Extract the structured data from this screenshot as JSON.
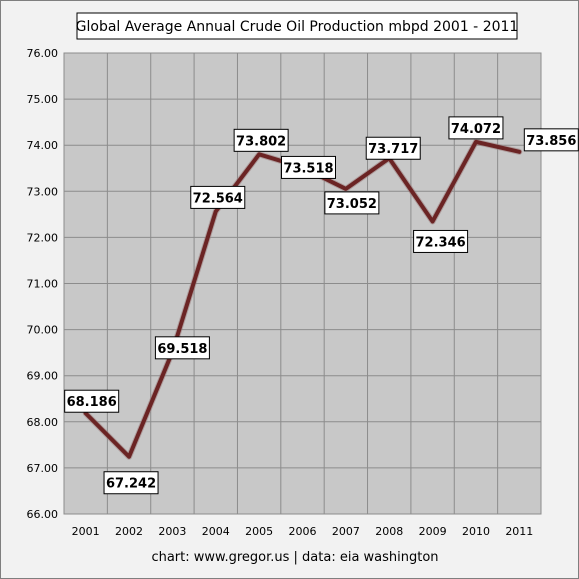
{
  "chart_data": {
    "type": "line",
    "title": "Global Average Annual Crude Oil Production mbpd 2001 - 2011",
    "xlabel": "",
    "ylabel": "",
    "categories": [
      "2001",
      "2002",
      "2003",
      "2004",
      "2005",
      "2006",
      "2007",
      "2008",
      "2009",
      "2010",
      "2011"
    ],
    "values": [
      68.186,
      67.242,
      69.518,
      72.564,
      73.802,
      73.518,
      73.052,
      73.717,
      72.346,
      74.072,
      73.856
    ],
    "data_labels": [
      "68.186",
      "67.242",
      "69.518",
      "72.564",
      "73.802",
      "73.518",
      "73.052",
      "73.717",
      "72.346",
      "74.072",
      "73.856"
    ],
    "ylim": [
      66.0,
      76.0
    ],
    "y_ticks": [
      "66.00",
      "67.00",
      "68.00",
      "69.00",
      "70.00",
      "71.00",
      "72.00",
      "73.00",
      "74.00",
      "75.00",
      "76.00"
    ],
    "grid": true,
    "legend": "none",
    "line_color": "#6b2424",
    "plot_background": "#c8c8c8",
    "source_note": "chart:  www.gregor.us   |   data: eia washington"
  }
}
